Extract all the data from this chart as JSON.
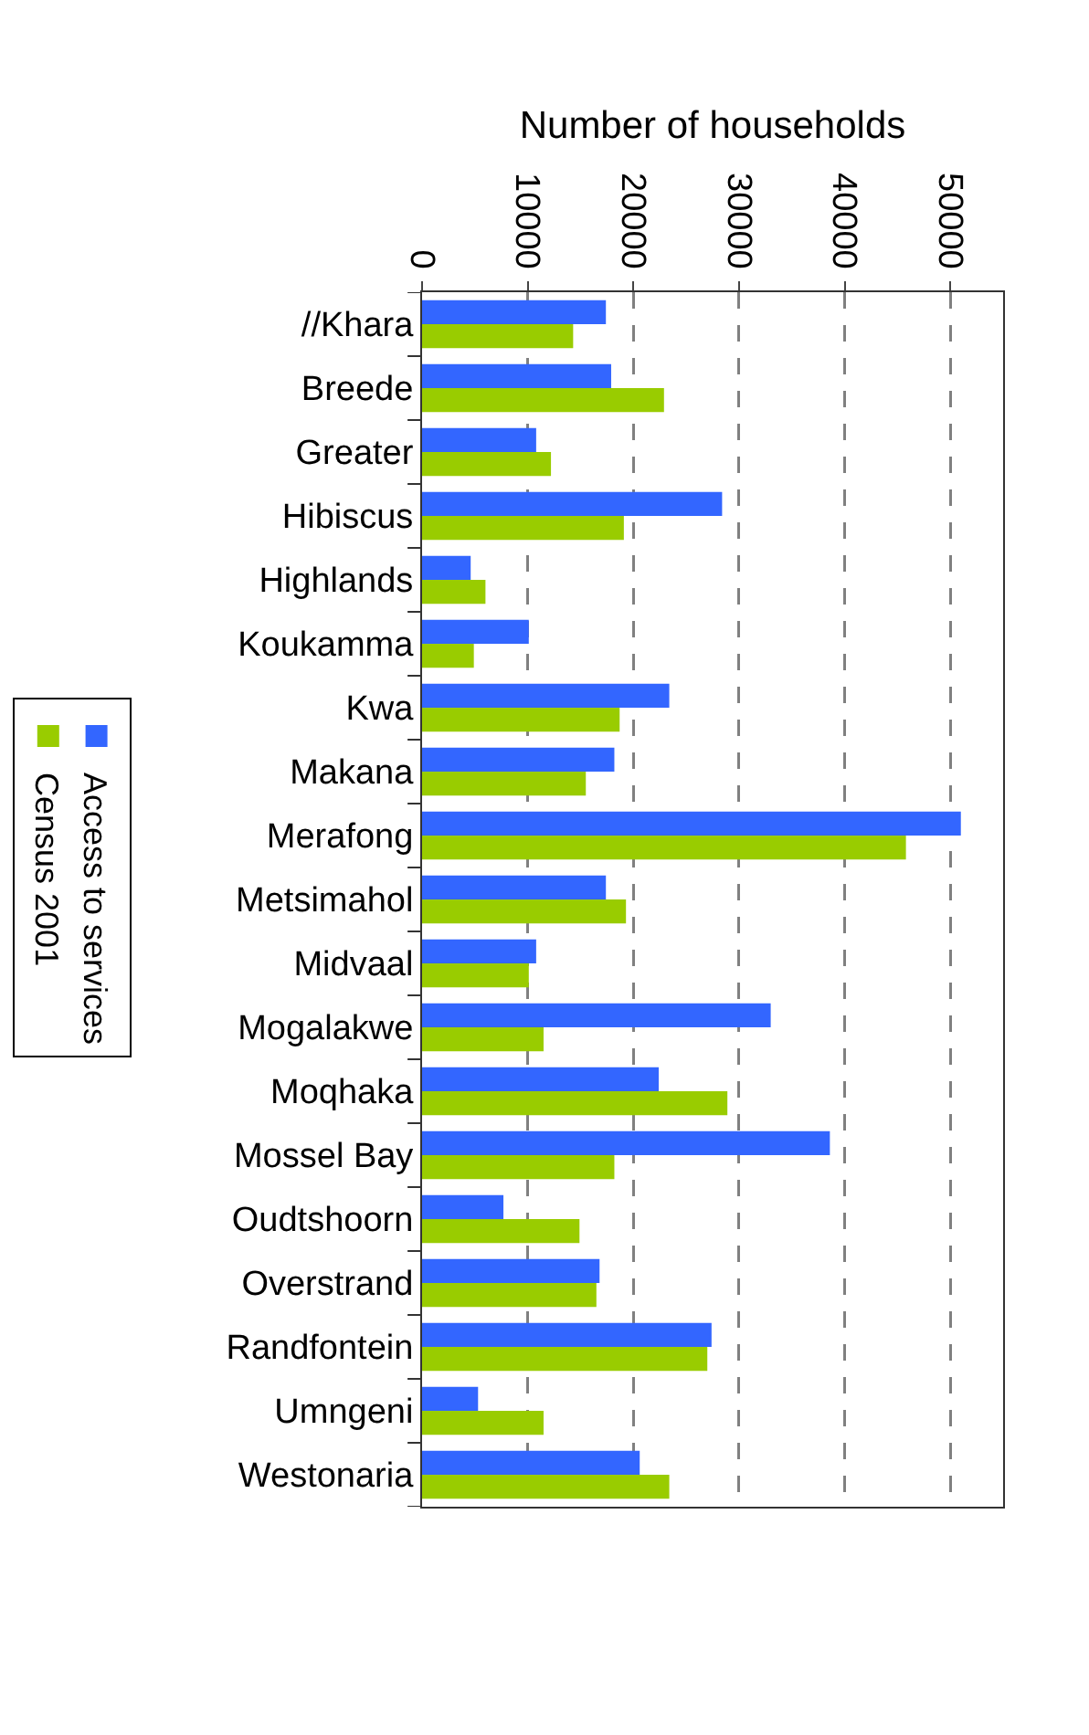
{
  "chart_data": {
    "type": "bar",
    "orientation": "horizontal",
    "xlabel": "Number of households",
    "categories": [
      "//Khara",
      "Breede",
      "Greater",
      "Hibiscus",
      "Highlands",
      "Koukamma",
      "Kwa",
      "Makana",
      "Merafong",
      "Metsimahol",
      "Midvaal",
      "Mogalakwe",
      "Moqhaka",
      "Mossel Bay",
      "Oudtshoorn",
      "Overstrand",
      "Randfontein",
      "Umngeni",
      "Westonaria"
    ],
    "series": [
      {
        "name": "Access to services",
        "color": "#3366ff",
        "values": [
          17400,
          17900,
          10800,
          28400,
          4600,
          10100,
          23400,
          18200,
          51000,
          17400,
          10800,
          33000,
          22400,
          38600,
          7700,
          16800,
          27400,
          5300,
          20600
        ]
      },
      {
        "name": "Census 2001",
        "color": "#99cc00",
        "values": [
          14300,
          22900,
          12200,
          19100,
          6000,
          4900,
          18700,
          15500,
          45800,
          19300,
          10100,
          11500,
          28900,
          18200,
          14900,
          16500,
          27000,
          11500,
          23400
        ]
      }
    ],
    "xlim": [
      0,
      55000
    ],
    "xticks": [
      0,
      10000,
      20000,
      30000,
      40000,
      50000
    ],
    "grid": "x",
    "legend": "left"
  }
}
